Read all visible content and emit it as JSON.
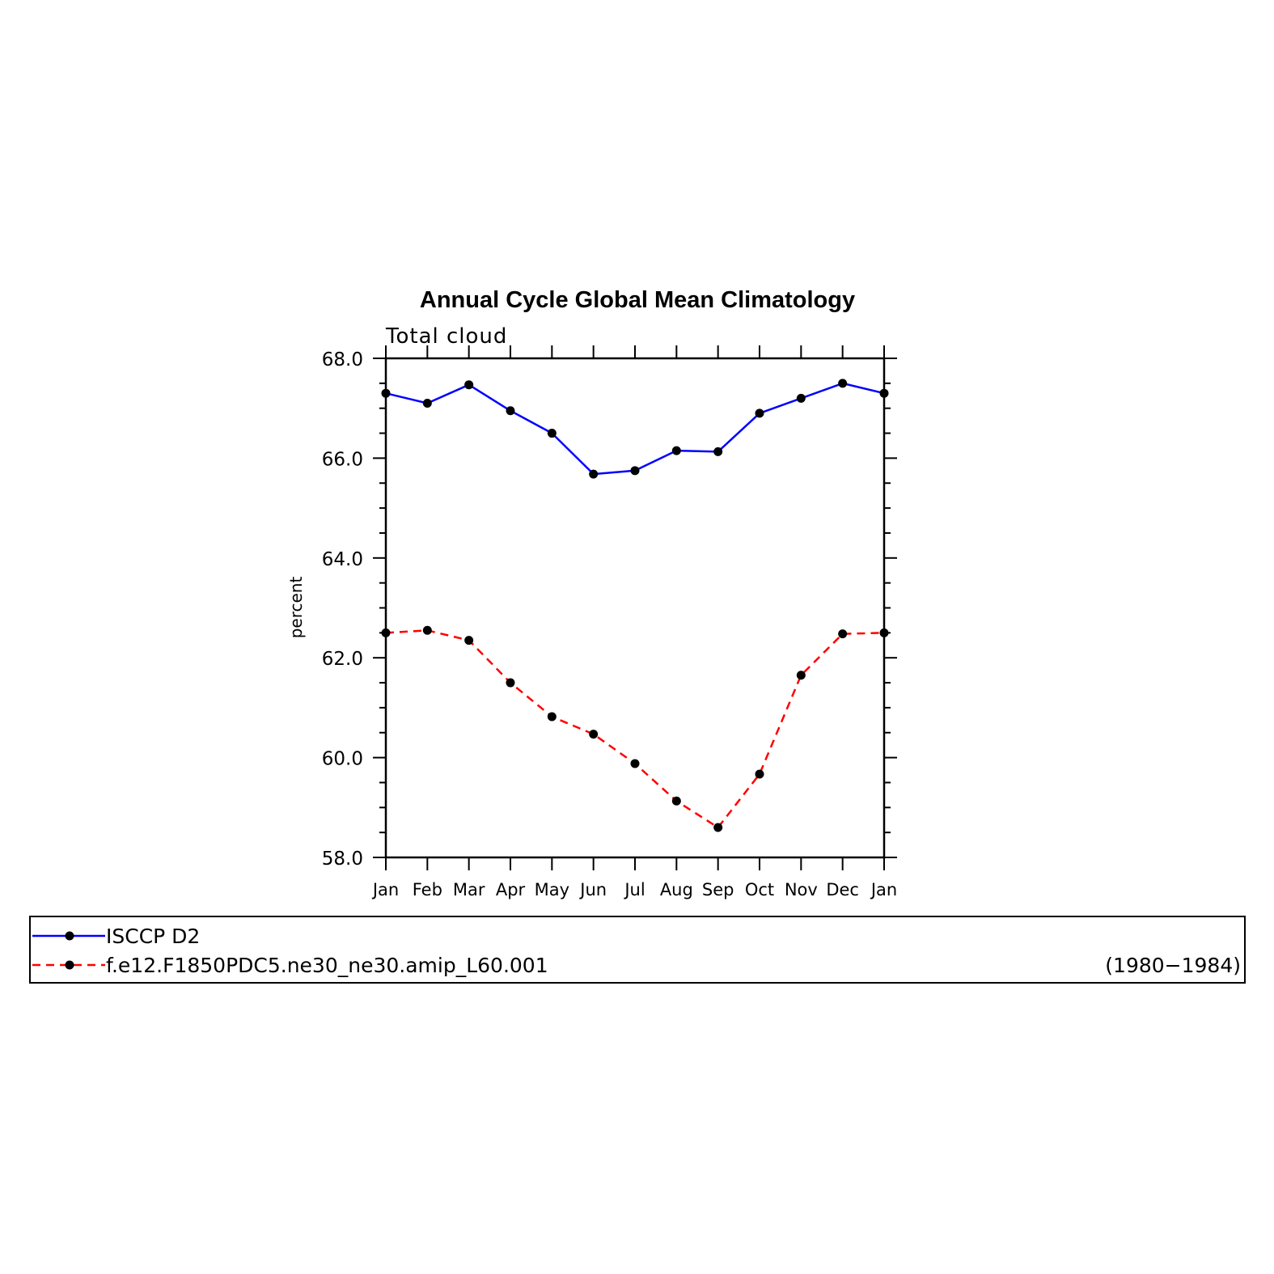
{
  "chart_data": {
    "type": "line",
    "title": "Annual Cycle Global Mean Climatology",
    "subtitle": "Total cloud",
    "xlabel": "",
    "ylabel": "percent",
    "categories": [
      "Jan",
      "Feb",
      "Mar",
      "Apr",
      "May",
      "Jun",
      "Jul",
      "Aug",
      "Sep",
      "Oct",
      "Nov",
      "Dec",
      "Jan"
    ],
    "ylim": [
      58.0,
      68.0
    ],
    "yticks": [
      "58.0",
      "60.0",
      "62.0",
      "64.0",
      "66.0",
      "68.0"
    ],
    "grid": false,
    "series": [
      {
        "name": "ISCCP D2",
        "color": "#0000ff",
        "dash": "solid",
        "values": [
          67.3,
          67.1,
          67.47,
          66.95,
          66.5,
          65.68,
          65.75,
          66.15,
          66.13,
          66.9,
          67.2,
          67.5,
          67.3
        ]
      },
      {
        "name": "f.e12.F1850PDC5.ne30_ne30.amip_L60.001",
        "color": "#ff0000",
        "dash": "dashed",
        "values": [
          62.5,
          62.55,
          62.35,
          61.5,
          60.82,
          60.47,
          59.88,
          59.13,
          58.6,
          59.67,
          61.65,
          62.48,
          62.5
        ]
      }
    ],
    "legend": {
      "placement": "below",
      "entries": [
        "ISCCP D2",
        "f.e12.F1850PDC5.ne30_ne30.amip_L60.001"
      ],
      "period": "(1980−1984)"
    }
  }
}
